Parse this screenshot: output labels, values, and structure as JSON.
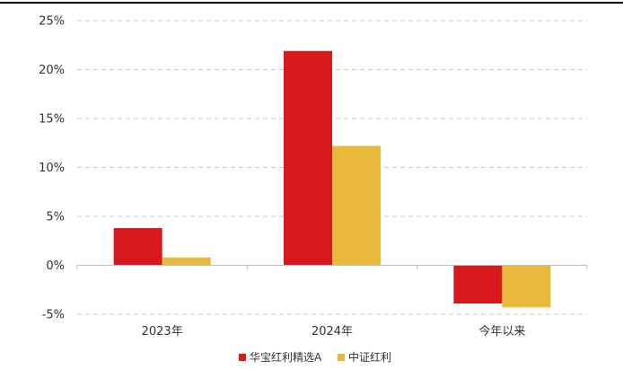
{
  "chart_data": {
    "type": "bar",
    "categories": [
      "2023年",
      "2024年",
      "今年以来"
    ],
    "series": [
      {
        "name": "华宝红利精选A",
        "color": "#d7191c",
        "values": [
          3.8,
          21.9,
          -3.9
        ]
      },
      {
        "name": "中证红利",
        "color": "#e8b93a",
        "values": [
          0.8,
          12.2,
          -4.3
        ]
      }
    ],
    "y_ticks": [
      {
        "value": 25,
        "label": "25%"
      },
      {
        "value": 20,
        "label": "20%"
      },
      {
        "value": 15,
        "label": "15%"
      },
      {
        "value": 10,
        "label": "10%"
      },
      {
        "value": 5,
        "label": "5%"
      },
      {
        "value": 0,
        "label": "0%"
      },
      {
        "value": -5,
        "label": "-5%"
      }
    ],
    "ylim": [
      -5,
      25
    ],
    "grid": true,
    "legend_position": "bottom-center",
    "title": "",
    "xlabel": "",
    "ylabel": ""
  }
}
